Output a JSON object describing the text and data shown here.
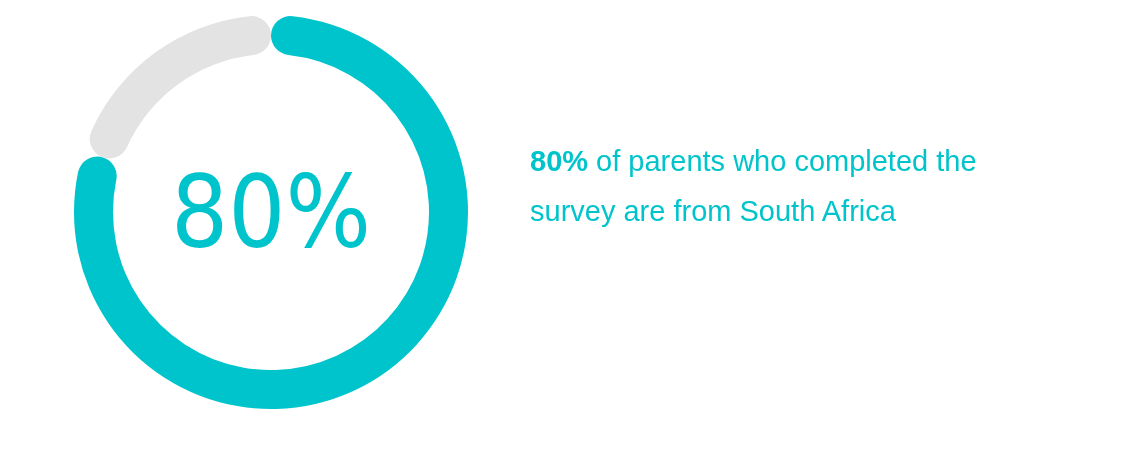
{
  "chart_data": {
    "type": "donut",
    "categories": [
      null,
      null
    ],
    "values": [
      80,
      20
    ],
    "colors": [
      "#00c4cc",
      "#e3e3e3"
    ],
    "value_labels": [
      "80%",
      null
    ],
    "annotations": [
      "80% of parents who completed the survey are from South Africa"
    ]
  }
}
